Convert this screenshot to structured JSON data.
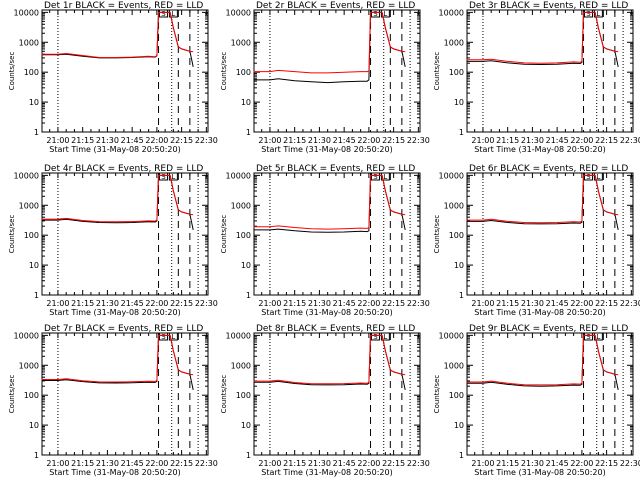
{
  "chart_data": [
    {
      "type": "line",
      "title": "Det 1r BLACK = Events, RED = LLD",
      "xlabel": "Start Time (31-May-08 20:50:20)",
      "ylabel": "Counts/sec",
      "x_ticks": [
        "21:00",
        "21:15",
        "21:30",
        "21:45",
        "22:00",
        "22:15",
        "22:30"
      ],
      "y_ticks": [
        "1",
        "10",
        "100",
        "1000",
        "10000"
      ],
      "yscale": "log",
      "ylim": [
        1,
        12000
      ],
      "flag_labels": [
        "S",
        "L"
      ],
      "series": [
        {
          "color": "#000000",
          "x": [
            "20:50",
            "21:00",
            "21:05",
            "21:15",
            "21:25",
            "21:35",
            "21:45",
            "21:55",
            "21:59",
            "22:00",
            "22:01",
            "22:08",
            "22:10",
            "22:13",
            "22:15",
            "22:20",
            "22:22"
          ],
          "y": [
            380,
            380,
            400,
            340,
            300,
            300,
            310,
            330,
            320,
            350,
            10000,
            10000,
            3000,
            700,
            600,
            500,
            150
          ]
        },
        {
          "color": "#ff0000",
          "x": [
            "20:50",
            "21:00",
            "21:05",
            "21:15",
            "21:25",
            "21:35",
            "21:45",
            "21:55",
            "21:59",
            "22:00",
            "22:01",
            "22:08",
            "22:10",
            "22:13",
            "22:15",
            "22:20",
            "22:22"
          ],
          "y": [
            400,
            400,
            420,
            360,
            310,
            310,
            320,
            340,
            330,
            360,
            10000,
            10000,
            3000,
            700,
            600,
            500,
            480
          ]
        }
      ]
    },
    {
      "type": "line",
      "title": "Det 2r BLACK = Events, RED = LLD",
      "xlabel": "Start Time (31-May-08 20:50:20)",
      "ylabel": "Counts/sec",
      "x_ticks": [
        "21:00",
        "21:15",
        "21:30",
        "21:45",
        "22:00",
        "22:15",
        "22:30"
      ],
      "y_ticks": [
        "1",
        "10",
        "100",
        "1000",
        "10000"
      ],
      "yscale": "log",
      "ylim": [
        1,
        12000
      ],
      "flag_labels": [
        "S",
        "L"
      ],
      "series": [
        {
          "color": "#000000",
          "x": [
            "20:50",
            "21:00",
            "21:05",
            "21:15",
            "21:25",
            "21:35",
            "21:45",
            "21:55",
            "21:59",
            "22:00",
            "22:01",
            "22:08",
            "22:10",
            "22:13",
            "22:15",
            "22:20",
            "22:22"
          ],
          "y": [
            55,
            55,
            60,
            52,
            48,
            45,
            48,
            50,
            50,
            55,
            10000,
            10000,
            3000,
            700,
            600,
            500,
            150
          ]
        },
        {
          "color": "#ff0000",
          "x": [
            "20:50",
            "21:00",
            "21:05",
            "21:15",
            "21:25",
            "21:35",
            "21:45",
            "21:55",
            "21:59",
            "22:00",
            "22:01",
            "22:08",
            "22:10",
            "22:13",
            "22:15",
            "22:20",
            "22:22"
          ],
          "y": [
            105,
            105,
            115,
            105,
            95,
            95,
            100,
            105,
            105,
            110,
            10000,
            10000,
            3000,
            700,
            600,
            500,
            480
          ]
        }
      ]
    },
    {
      "type": "line",
      "title": "Det 3r BLACK = Events, RED = LLD",
      "xlabel": "Start Time (31-May-08 20:50:20)",
      "ylabel": "Counts/sec",
      "x_ticks": [
        "21:00",
        "21:15",
        "21:30",
        "21:45",
        "22:00",
        "22:15",
        "22:30"
      ],
      "y_ticks": [
        "1",
        "10",
        "100",
        "1000",
        "10000"
      ],
      "yscale": "log",
      "ylim": [
        1,
        12000
      ],
      "flag_labels": [
        "S",
        "L"
      ],
      "series": [
        {
          "color": "#000000",
          "x": [
            "20:50",
            "21:00",
            "21:05",
            "21:15",
            "21:25",
            "21:35",
            "21:45",
            "21:55",
            "21:59",
            "22:00",
            "22:01",
            "22:08",
            "22:10",
            "22:13",
            "22:15",
            "22:20",
            "22:22"
          ],
          "y": [
            230,
            230,
            240,
            205,
            185,
            180,
            185,
            200,
            195,
            210,
            10000,
            10000,
            3000,
            700,
            600,
            500,
            150
          ]
        },
        {
          "color": "#ff0000",
          "x": [
            "20:50",
            "21:00",
            "21:05",
            "21:15",
            "21:25",
            "21:35",
            "21:45",
            "21:55",
            "21:59",
            "22:00",
            "22:01",
            "22:08",
            "22:10",
            "22:13",
            "22:15",
            "22:20",
            "22:22"
          ],
          "y": [
            260,
            260,
            270,
            230,
            205,
            200,
            205,
            220,
            215,
            230,
            10000,
            10000,
            3000,
            700,
            600,
            500,
            480
          ]
        }
      ]
    },
    {
      "type": "line",
      "title": "Det 4r BLACK = Events, RED = LLD",
      "xlabel": "Start Time (31-May-08 20:50:20)",
      "ylabel": "Counts/sec",
      "x_ticks": [
        "21:00",
        "21:15",
        "21:30",
        "21:45",
        "22:00",
        "22:15",
        "22:30"
      ],
      "y_ticks": [
        "1",
        "10",
        "100",
        "1000",
        "10000"
      ],
      "yscale": "log",
      "ylim": [
        1,
        12000
      ],
      "flag_labels": [
        "S",
        "L"
      ],
      "series": [
        {
          "color": "#000000",
          "x": [
            "20:50",
            "21:00",
            "21:05",
            "21:15",
            "21:25",
            "21:35",
            "21:45",
            "21:55",
            "21:59",
            "22:00",
            "22:01",
            "22:08",
            "22:10",
            "22:13",
            "22:15",
            "22:20",
            "22:22"
          ],
          "y": [
            320,
            320,
            340,
            290,
            265,
            260,
            265,
            280,
            275,
            300,
            10000,
            10000,
            3000,
            700,
            600,
            500,
            150
          ]
        },
        {
          "color": "#ff0000",
          "x": [
            "20:50",
            "21:00",
            "21:05",
            "21:15",
            "21:25",
            "21:35",
            "21:45",
            "21:55",
            "21:59",
            "22:00",
            "22:01",
            "22:08",
            "22:10",
            "22:13",
            "22:15",
            "22:20",
            "22:22"
          ],
          "y": [
            345,
            345,
            365,
            310,
            285,
            280,
            285,
            300,
            295,
            320,
            10000,
            10000,
            3000,
            700,
            600,
            500,
            480
          ]
        }
      ]
    },
    {
      "type": "line",
      "title": "Det 5r BLACK = Events, RED = LLD",
      "xlabel": "Start Time (31-May-08 20:50:20)",
      "ylabel": "Counts/sec",
      "x_ticks": [
        "21:00",
        "21:15",
        "21:30",
        "21:45",
        "22:00",
        "22:15",
        "22:30"
      ],
      "y_ticks": [
        "1",
        "10",
        "100",
        "1000",
        "10000"
      ],
      "yscale": "log",
      "ylim": [
        1,
        12000
      ],
      "flag_labels": [
        "S",
        "L"
      ],
      "series": [
        {
          "color": "#000000",
          "x": [
            "20:50",
            "21:00",
            "21:05",
            "21:15",
            "21:25",
            "21:35",
            "21:45",
            "21:55",
            "21:59",
            "22:00",
            "22:01",
            "22:08",
            "22:10",
            "22:13",
            "22:15",
            "22:20",
            "22:22"
          ],
          "y": [
            150,
            150,
            160,
            140,
            128,
            125,
            128,
            135,
            132,
            140,
            10000,
            10000,
            3000,
            700,
            600,
            500,
            150
          ]
        },
        {
          "color": "#ff0000",
          "x": [
            "20:50",
            "21:00",
            "21:05",
            "21:15",
            "21:25",
            "21:35",
            "21:45",
            "21:55",
            "21:59",
            "22:00",
            "22:01",
            "22:08",
            "22:10",
            "22:13",
            "22:15",
            "22:20",
            "22:22"
          ],
          "y": [
            190,
            190,
            205,
            180,
            165,
            160,
            165,
            172,
            168,
            180,
            10000,
            10000,
            3000,
            700,
            600,
            500,
            480
          ]
        }
      ]
    },
    {
      "type": "line",
      "title": "Det 6r BLACK = Events, RED = LLD",
      "xlabel": "Start Time (31-May-08 20:50:20)",
      "ylabel": "Counts/sec",
      "x_ticks": [
        "21:00",
        "21:15",
        "21:30",
        "21:45",
        "22:00",
        "22:15",
        "22:30"
      ],
      "y_ticks": [
        "1",
        "10",
        "100",
        "1000",
        "10000"
      ],
      "yscale": "log",
      "ylim": [
        1,
        12000
      ],
      "flag_labels": [
        "S",
        "L"
      ],
      "series": [
        {
          "color": "#000000",
          "x": [
            "20:50",
            "21:00",
            "21:05",
            "21:15",
            "21:25",
            "21:35",
            "21:45",
            "21:55",
            "21:59",
            "22:00",
            "22:01",
            "22:08",
            "22:10",
            "22:13",
            "22:15",
            "22:20",
            "22:22"
          ],
          "y": [
            290,
            290,
            310,
            265,
            240,
            238,
            242,
            255,
            250,
            270,
            10000,
            10000,
            3000,
            700,
            600,
            500,
            150
          ]
        },
        {
          "color": "#ff0000",
          "x": [
            "20:50",
            "21:00",
            "21:05",
            "21:15",
            "21:25",
            "21:35",
            "21:45",
            "21:55",
            "21:59",
            "22:00",
            "22:01",
            "22:08",
            "22:10",
            "22:13",
            "22:15",
            "22:20",
            "22:22"
          ],
          "y": [
            320,
            320,
            340,
            290,
            265,
            262,
            266,
            280,
            275,
            295,
            10000,
            10000,
            3000,
            700,
            600,
            500,
            480
          ]
        }
      ]
    },
    {
      "type": "line",
      "title": "Det 7r BLACK = Events, RED = LLD",
      "xlabel": "Start Time (31-May-08 20:50:20)",
      "ylabel": "Counts/sec",
      "x_ticks": [
        "21:00",
        "21:15",
        "21:30",
        "21:45",
        "22:00",
        "22:15",
        "22:30"
      ],
      "y_ticks": [
        "1",
        "10",
        "100",
        "1000",
        "10000"
      ],
      "yscale": "log",
      "ylim": [
        1,
        12000
      ],
      "flag_labels": [
        "S",
        "L"
      ],
      "series": [
        {
          "color": "#000000",
          "x": [
            "20:50",
            "21:00",
            "21:05",
            "21:15",
            "21:25",
            "21:35",
            "21:45",
            "21:55",
            "21:59",
            "22:00",
            "22:01",
            "22:08",
            "22:10",
            "22:13",
            "22:15",
            "22:20",
            "22:22"
          ],
          "y": [
            310,
            310,
            330,
            285,
            258,
            255,
            260,
            272,
            268,
            290,
            10000,
            10000,
            3000,
            700,
            600,
            500,
            150
          ]
        },
        {
          "color": "#ff0000",
          "x": [
            "20:50",
            "21:00",
            "21:05",
            "21:15",
            "21:25",
            "21:35",
            "21:45",
            "21:55",
            "21:59",
            "22:00",
            "22:01",
            "22:08",
            "22:10",
            "22:13",
            "22:15",
            "22:20",
            "22:22"
          ],
          "y": [
            335,
            335,
            355,
            305,
            278,
            275,
            280,
            292,
            288,
            310,
            10000,
            10000,
            3000,
            700,
            600,
            500,
            480
          ]
        }
      ]
    },
    {
      "type": "line",
      "title": "Det 8r BLACK = Events, RED = LLD",
      "xlabel": "Start Time (31-May-08 20:50:20)",
      "ylabel": "Counts/sec",
      "x_ticks": [
        "21:00",
        "21:15",
        "21:30",
        "21:45",
        "22:00",
        "22:15",
        "22:30"
      ],
      "y_ticks": [
        "1",
        "10",
        "100",
        "1000",
        "10000"
      ],
      "yscale": "log",
      "ylim": [
        1,
        12000
      ],
      "flag_labels": [
        "S",
        "L"
      ],
      "series": [
        {
          "color": "#000000",
          "x": [
            "20:50",
            "21:00",
            "21:05",
            "21:15",
            "21:25",
            "21:35",
            "21:45",
            "21:55",
            "21:59",
            "22:00",
            "22:01",
            "22:08",
            "22:10",
            "22:13",
            "22:15",
            "22:20",
            "22:22"
          ],
          "y": [
            270,
            270,
            290,
            245,
            222,
            220,
            224,
            236,
            232,
            250,
            10000,
            10000,
            3000,
            700,
            600,
            500,
            150
          ]
        },
        {
          "color": "#ff0000",
          "x": [
            "20:50",
            "21:00",
            "21:05",
            "21:15",
            "21:25",
            "21:35",
            "21:45",
            "21:55",
            "21:59",
            "22:00",
            "22:01",
            "22:08",
            "22:10",
            "22:13",
            "22:15",
            "22:20",
            "22:22"
          ],
          "y": [
            295,
            295,
            315,
            265,
            242,
            240,
            244,
            256,
            252,
            270,
            10000,
            10000,
            3000,
            700,
            600,
            500,
            480
          ]
        }
      ]
    },
    {
      "type": "line",
      "title": "Det 9r BLACK = Events, RED = LLD",
      "xlabel": "Start Time (31-May-08 20:50:20)",
      "ylabel": "Counts/sec",
      "x_ticks": [
        "21:00",
        "21:15",
        "21:30",
        "21:45",
        "22:00",
        "22:15",
        "22:30"
      ],
      "y_ticks": [
        "1",
        "10",
        "100",
        "1000",
        "10000"
      ],
      "yscale": "log",
      "ylim": [
        1,
        12000
      ],
      "flag_labels": [
        "S",
        "L"
      ],
      "series": [
        {
          "color": "#000000",
          "x": [
            "20:50",
            "21:00",
            "21:05",
            "21:15",
            "21:25",
            "21:35",
            "21:45",
            "21:55",
            "21:59",
            "22:00",
            "22:01",
            "22:08",
            "22:10",
            "22:13",
            "22:15",
            "22:20",
            "22:22"
          ],
          "y": [
            250,
            250,
            270,
            230,
            205,
            200,
            205,
            218,
            214,
            232,
            10000,
            10000,
            3000,
            700,
            600,
            500,
            150
          ]
        },
        {
          "color": "#ff0000",
          "x": [
            "20:50",
            "21:00",
            "21:05",
            "21:15",
            "21:25",
            "21:35",
            "21:45",
            "21:55",
            "21:59",
            "22:00",
            "22:01",
            "22:08",
            "22:10",
            "22:13",
            "22:15",
            "22:20",
            "22:22"
          ],
          "y": [
            275,
            275,
            295,
            250,
            225,
            220,
            225,
            238,
            234,
            252,
            10000,
            10000,
            3000,
            700,
            600,
            500,
            480
          ]
        }
      ]
    }
  ]
}
